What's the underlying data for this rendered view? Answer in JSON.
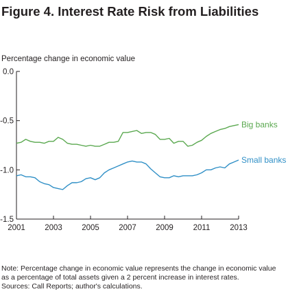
{
  "title": "Figure 4. Interest Rate Risk from Liabilities",
  "notes": [
    "Note: Percentage change in economic value represents the change in economic value",
    "as a percentage of total assets given a 2 percent increase in interest rates.",
    "Sources: Call Reports; author's calculations."
  ],
  "colors": {
    "big": "#5aa84f",
    "small": "#2f8fc6",
    "axis": "#231f20"
  },
  "chart_data": {
    "type": "line",
    "ylabel": "Percentage change in economic value",
    "xlabel": "",
    "xlim": [
      2001,
      2013
    ],
    "ylim": [
      -1.5,
      0
    ],
    "xticks": [
      2001,
      2003,
      2005,
      2007,
      2009,
      2011,
      2013
    ],
    "yticks": [
      0,
      -0.5,
      -1.0,
      -1.5
    ],
    "ytick_labels": [
      "0.0",
      "-0.5",
      "-1.0",
      "-1.5"
    ],
    "grid": false,
    "series": [
      {
        "name": "Big banks",
        "color": "#5aa84f",
        "x": [
          2001.0,
          2001.25,
          2001.5,
          2001.75,
          2002.0,
          2002.25,
          2002.5,
          2002.75,
          2003.0,
          2003.25,
          2003.5,
          2003.75,
          2004.0,
          2004.25,
          2004.5,
          2004.75,
          2005.0,
          2005.25,
          2005.5,
          2005.75,
          2006.0,
          2006.25,
          2006.5,
          2006.75,
          2007.0,
          2007.25,
          2007.5,
          2007.75,
          2008.0,
          2008.25,
          2008.5,
          2008.75,
          2009.0,
          2009.25,
          2009.5,
          2009.75,
          2010.0,
          2010.25,
          2010.5,
          2010.75,
          2011.0,
          2011.25,
          2011.5,
          2011.75,
          2012.0,
          2012.25,
          2012.5,
          2012.75,
          2013.0
        ],
        "values": [
          -0.73,
          -0.72,
          -0.69,
          -0.71,
          -0.72,
          -0.72,
          -0.73,
          -0.71,
          -0.71,
          -0.67,
          -0.69,
          -0.73,
          -0.74,
          -0.74,
          -0.75,
          -0.76,
          -0.75,
          -0.76,
          -0.76,
          -0.74,
          -0.72,
          -0.72,
          -0.71,
          -0.62,
          -0.62,
          -0.61,
          -0.6,
          -0.63,
          -0.62,
          -0.62,
          -0.64,
          -0.69,
          -0.69,
          -0.68,
          -0.73,
          -0.71,
          -0.71,
          -0.76,
          -0.75,
          -0.72,
          -0.7,
          -0.66,
          -0.63,
          -0.61,
          -0.59,
          -0.58,
          -0.56,
          -0.55,
          -0.54
        ]
      },
      {
        "name": "Small banks",
        "color": "#2f8fc6",
        "x": [
          2001.0,
          2001.25,
          2001.5,
          2001.75,
          2002.0,
          2002.25,
          2002.5,
          2002.75,
          2003.0,
          2003.25,
          2003.5,
          2003.75,
          2004.0,
          2004.25,
          2004.5,
          2004.75,
          2005.0,
          2005.25,
          2005.5,
          2005.75,
          2006.0,
          2006.25,
          2006.5,
          2006.75,
          2007.0,
          2007.25,
          2007.5,
          2007.75,
          2008.0,
          2008.25,
          2008.5,
          2008.75,
          2009.0,
          2009.25,
          2009.5,
          2009.75,
          2010.0,
          2010.25,
          2010.5,
          2010.75,
          2011.0,
          2011.25,
          2011.5,
          2011.75,
          2012.0,
          2012.25,
          2012.5,
          2012.75,
          2013.0
        ],
        "values": [
          -1.06,
          -1.05,
          -1.07,
          -1.07,
          -1.08,
          -1.12,
          -1.14,
          -1.15,
          -1.18,
          -1.19,
          -1.2,
          -1.16,
          -1.13,
          -1.13,
          -1.12,
          -1.09,
          -1.08,
          -1.1,
          -1.08,
          -1.03,
          -1.0,
          -0.98,
          -0.96,
          -0.94,
          -0.92,
          -0.91,
          -0.92,
          -0.92,
          -0.94,
          -0.99,
          -1.03,
          -1.07,
          -1.08,
          -1.08,
          -1.06,
          -1.07,
          -1.06,
          -1.06,
          -1.06,
          -1.05,
          -1.03,
          -1.0,
          -1.0,
          -0.98,
          -0.97,
          -0.98,
          -0.94,
          -0.92,
          -0.9
        ]
      }
    ]
  }
}
